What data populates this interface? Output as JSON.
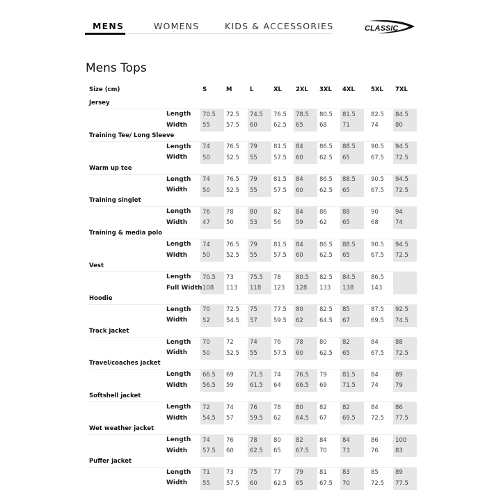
{
  "nav": {
    "tabs": [
      {
        "label": "MENS",
        "active": true
      },
      {
        "label": "WOMENS",
        "active": false
      },
      {
        "label": "KIDS & ACCESSORIES",
        "active": false
      }
    ],
    "logo_text": "CLASSIC"
  },
  "page_title": "Mens Tops",
  "table": {
    "header_label": "Size (cm)",
    "sizes": [
      "S",
      "M",
      "L",
      "XL",
      "2XL",
      "3XL",
      "4XL",
      "5XL",
      "7XL"
    ],
    "shaded_color": "#e6e6e6",
    "groups": [
      {
        "name": "Jersey",
        "rows": [
          {
            "label": "Length",
            "values": [
              "70.5",
              "72.5",
              "74.5",
              "76.5",
              "78.5",
              "80.5",
              "81.5",
              "82.5",
              "84.5"
            ]
          },
          {
            "label": "Width",
            "values": [
              "55",
              "57.5",
              "60",
              "62.5",
              "65",
              "68",
              "71",
              "74",
              "80"
            ]
          }
        ]
      },
      {
        "name": "Training Tee/ Long Sleeve",
        "rows": [
          {
            "label": "Length",
            "values": [
              "74",
              "76.5",
              "79",
              "81.5",
              "84",
              "86.5",
              "88.5",
              "90.5",
              "94.5"
            ]
          },
          {
            "label": "Width",
            "values": [
              "50",
              "52.5",
              "55",
              "57.5",
              "60",
              "62.5",
              "65",
              "67.5",
              "72.5"
            ]
          }
        ]
      },
      {
        "name": "Warm up tee",
        "rows": [
          {
            "label": "Length",
            "values": [
              "74",
              "76.5",
              "79",
              "81.5",
              "84",
              "86.5",
              "88.5",
              "90.5",
              "94.5"
            ]
          },
          {
            "label": "Width",
            "values": [
              "50",
              "52.5",
              "55",
              "57.5",
              "60",
              "62.5",
              "65",
              "67.5",
              "72.5"
            ]
          }
        ]
      },
      {
        "name": "Training singlet",
        "rows": [
          {
            "label": "Length",
            "values": [
              "76",
              "78",
              "80",
              "82",
              "84",
              "86",
              "88",
              "90",
              "94"
            ]
          },
          {
            "label": "Width",
            "values": [
              "47",
              "50",
              "53",
              "56",
              "59",
              "62",
              "65",
              "68",
              "74"
            ]
          }
        ]
      },
      {
        "name": "Training & media polo",
        "rows": [
          {
            "label": "Length",
            "values": [
              "74",
              "76.5",
              "79",
              "81.5",
              "84",
              "86.5",
              "88.5",
              "90.5",
              "94.5"
            ]
          },
          {
            "label": "Width",
            "values": [
              "50",
              "52.5",
              "55",
              "57.5",
              "60",
              "62.5",
              "65",
              "67.5",
              "72.5"
            ]
          }
        ]
      },
      {
        "name": "Vest",
        "rows": [
          {
            "label": "Length",
            "values": [
              "70.5",
              "73",
              "75.5",
              "78",
              "80.5",
              "82.5",
              "84.5",
              "86.5",
              ""
            ]
          },
          {
            "label": "Full Width",
            "values": [
              "108",
              "113",
              "118",
              "123",
              "128",
              "133",
              "138",
              "143",
              ""
            ]
          }
        ]
      },
      {
        "name": "Hoodie",
        "rows": [
          {
            "label": "Length",
            "values": [
              "70",
              "72.5",
              "75",
              "77.5",
              "80",
              "82.5",
              "85",
              "87.5",
              "92.5"
            ]
          },
          {
            "label": "Width",
            "values": [
              "52",
              "54.5",
              "57",
              "59.5",
              "62",
              "64.5",
              "67",
              "69.5",
              "74.5"
            ]
          }
        ]
      },
      {
        "name": "Track jacket",
        "rows": [
          {
            "label": "Length",
            "values": [
              "70",
              "72",
              "74",
              "76",
              "78",
              "80",
              "82",
              "84",
              "88"
            ]
          },
          {
            "label": "Width",
            "values": [
              "50",
              "52.5",
              "55",
              "57.5",
              "60",
              "62.5",
              "65",
              "67.5",
              "72.5"
            ]
          }
        ]
      },
      {
        "name": "Travel/coaches  jacket",
        "rows": [
          {
            "label": "Length",
            "values": [
              "66.5",
              "69",
              "71.5",
              "74",
              "76.5",
              "79",
              "81.5",
              "84",
              "89"
            ]
          },
          {
            "label": "Width",
            "values": [
              "56.5",
              "59",
              "61.5",
              "64",
              "66.5",
              "69",
              "71.5",
              "74",
              "79"
            ]
          }
        ]
      },
      {
        "name": "Softshell jacket",
        "rows": [
          {
            "label": "Length",
            "values": [
              "72",
              "74",
              "76",
              "78",
              "80",
              "82",
              "82",
              "84",
              "86"
            ]
          },
          {
            "label": "Width",
            "values": [
              "54.5",
              "57",
              "59.5",
              "62",
              "64.5",
              "67",
              "69.5",
              "72.5",
              "77.5"
            ]
          }
        ]
      },
      {
        "name": "Wet weather jacket",
        "rows": [
          {
            "label": "Length",
            "values": [
              "74",
              "76",
              "78",
              "80",
              "82",
              "84",
              "84",
              "86",
              "100"
            ]
          },
          {
            "label": "Width",
            "values": [
              "57.5",
              "60",
              "62.5",
              "65",
              "67.5",
              "70",
              "73",
              "76",
              "83"
            ]
          }
        ]
      },
      {
        "name": "Puffer jacket",
        "rows": [
          {
            "label": "Length",
            "values": [
              "71",
              "73",
              "75",
              "77",
              "79",
              "81",
              "83",
              "85",
              "89"
            ]
          },
          {
            "label": "Width",
            "values": [
              "55",
              "57.5",
              "60",
              "62.5",
              "65",
              "67.5",
              "70",
              "72.5",
              "77.5"
            ]
          }
        ]
      }
    ]
  }
}
